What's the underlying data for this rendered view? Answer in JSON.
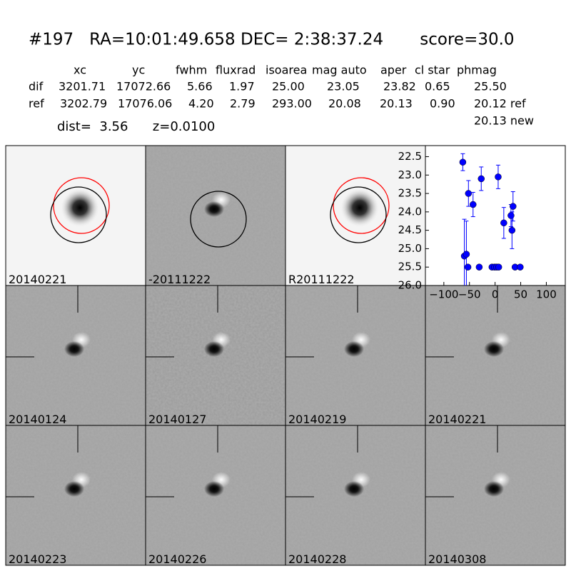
{
  "header": {
    "title": "#197   RA=10:01:49.658 DEC= 2:38:37.24       score=30.0",
    "columns": [
      "xc",
      "yc",
      "fwhm",
      "fluxrad",
      "isoarea",
      "mag auto",
      "aper",
      "cl star",
      "phmag"
    ],
    "rows": [
      {
        "name": "dif",
        "cells": [
          "3201.71",
          "17072.66",
          "5.66",
          "1.97",
          "25.00",
          "23.05",
          "23.82",
          "0.65",
          "25.50"
        ]
      },
      {
        "name": "ref",
        "cells": [
          "3202.79",
          "17076.06",
          "4.20",
          "2.79",
          "293.00",
          "20.08",
          "20.13",
          "0.90",
          "20.12 ref"
        ]
      }
    ],
    "extra": "20.13 new",
    "dist": "dist=  3.56      z=0.0100"
  },
  "panels": [
    "20140221",
    "-20111222",
    "R20111222",
    "20140124",
    "20140127",
    "20140219",
    "20140221",
    "20140223",
    "20140226",
    "20140228",
    "20140308"
  ],
  "chart_data": {
    "type": "scatter",
    "color": "#0000ff",
    "x": [
      -63,
      -60,
      -56,
      -53,
      -52,
      -43,
      -31,
      -27,
      -6,
      -1,
      3,
      7,
      6,
      17,
      31,
      33,
      35,
      39,
      49
    ],
    "values": [
      22.65,
      25.2,
      25.15,
      25.5,
      23.5,
      23.8,
      25.5,
      23.1,
      25.5,
      25.5,
      25.5,
      25.5,
      23.05,
      24.3,
      24.1,
      24.5,
      23.85,
      25.5,
      25.5
    ],
    "errors": [
      0.23,
      1.0,
      0.9,
      0.05,
      0.35,
      0.33,
      0.05,
      0.32,
      0.05,
      0.05,
      0.05,
      0.05,
      0.32,
      0.42,
      0.3,
      0.5,
      0.4,
      0.05,
      0.05
    ],
    "xlim": [
      -136,
      137
    ],
    "ylim": [
      26.0,
      22.2
    ],
    "xticks": [
      {
        "value": -100,
        "label": "−100"
      },
      {
        "value": -50,
        "label": "−50"
      },
      0,
      50,
      100
    ],
    "yticks": [
      {
        "value": 22.5,
        "label": "22.5"
      },
      {
        "value": 23.0,
        "label": "23.0"
      },
      {
        "value": 23.5,
        "label": "23.5"
      },
      {
        "value": 24.0,
        "label": "24.0"
      },
      {
        "value": 24.5,
        "label": "24.5"
      },
      {
        "value": 25.0,
        "label": "25.0"
      },
      {
        "value": 25.5,
        "label": "25.5"
      },
      {
        "value": 26.0,
        "label": "26.0"
      }
    ]
  }
}
